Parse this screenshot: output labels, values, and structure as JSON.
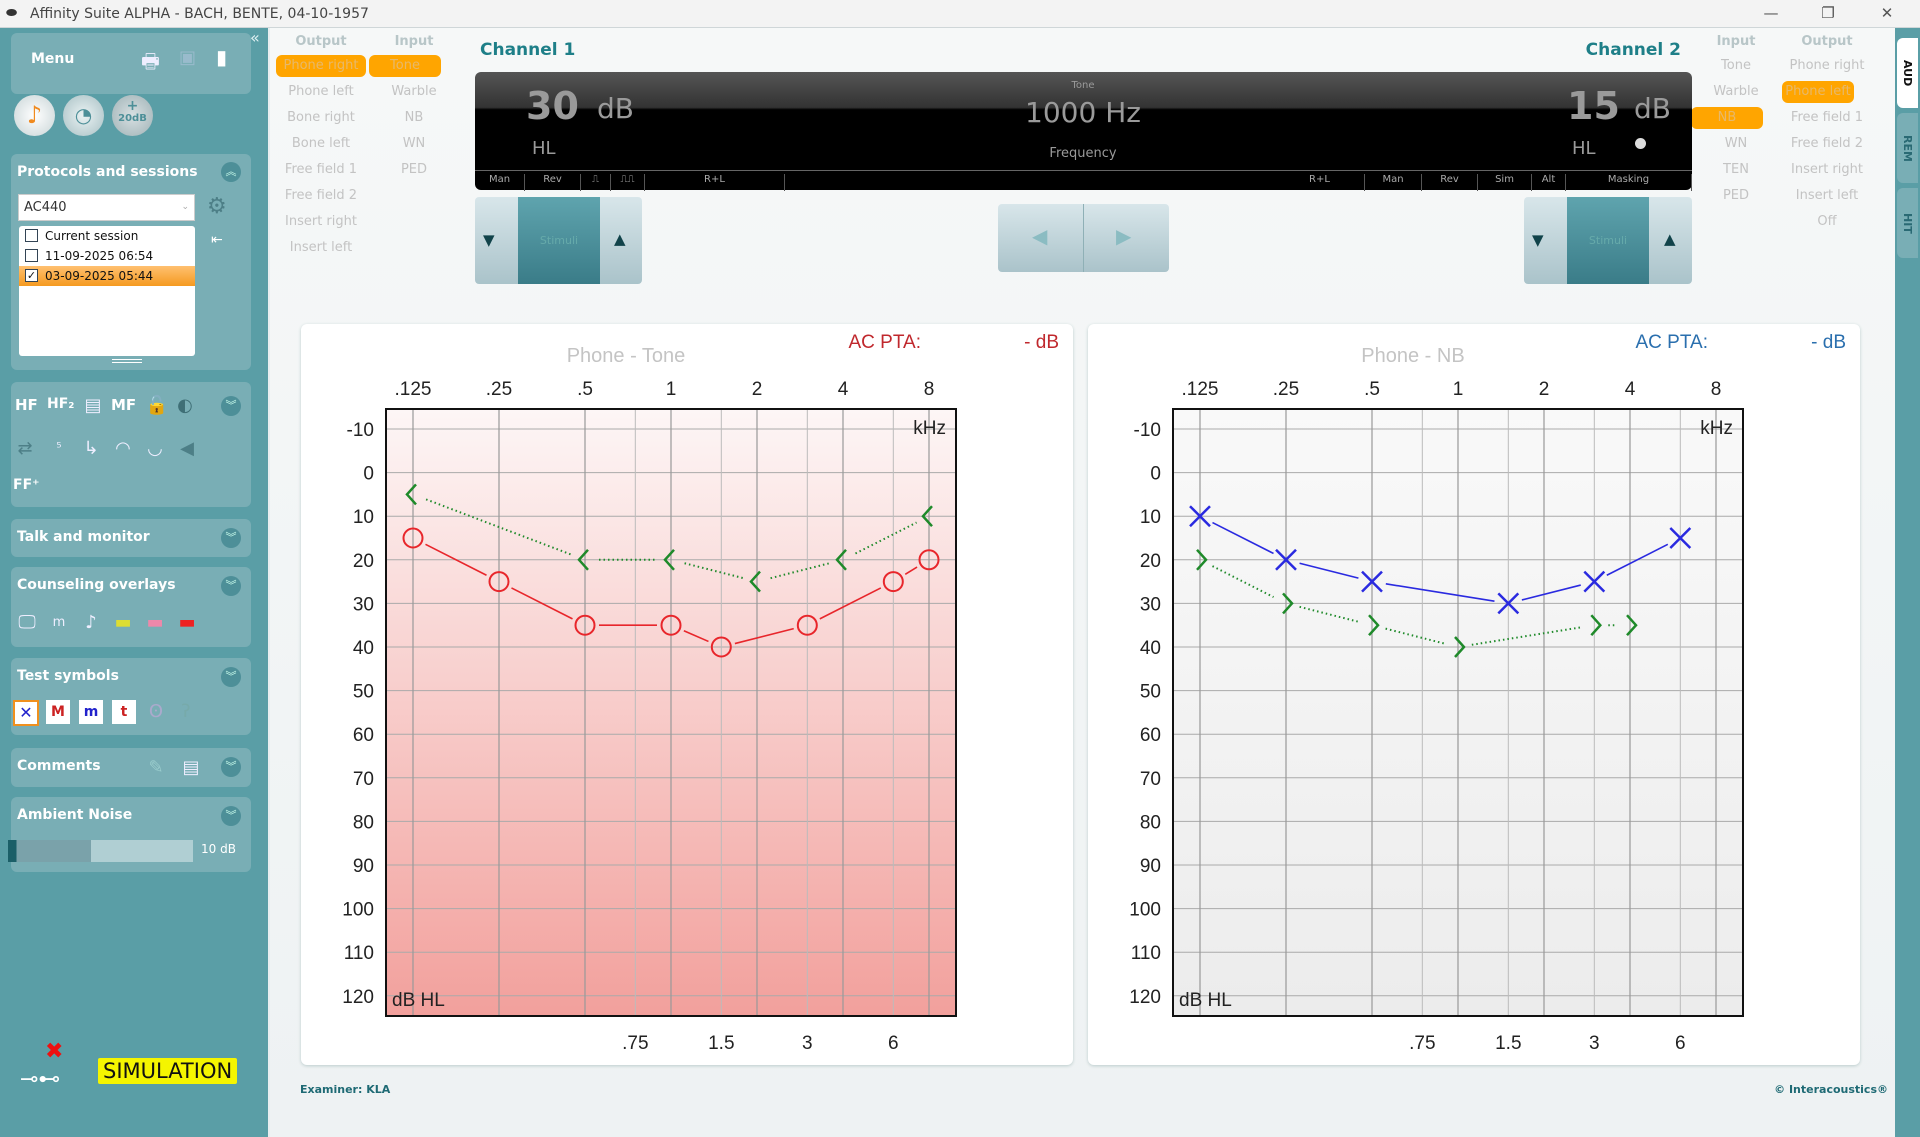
{
  "window": {
    "title": "Affinity Suite ALPHA - BACH, BENTE, 04-10-1957",
    "minimize": "—",
    "restore": "❐",
    "close": "✕"
  },
  "sidebar": {
    "menu_label": "Menu",
    "protocols": {
      "title": "Protocols and sessions",
      "protocol_value": "AC440",
      "sessions": [
        {
          "label": "Current session",
          "checked": false
        },
        {
          "label": "11-09-2025 06:54",
          "checked": false
        },
        {
          "label": "03-09-2025 05:44",
          "checked": true
        }
      ]
    },
    "tools": {
      "hf": "HF",
      "hf2": "HF₂",
      "mf": "MF",
      "ffplus": "FF⁺"
    },
    "talk_monitor": "Talk and monitor",
    "counseling": "Counseling overlays",
    "test_symbols": "Test symbols",
    "comments": "Comments",
    "ambient": {
      "title": "Ambient Noise",
      "value": "10 dB",
      "level_fraction": 0.45
    },
    "simulation": "SIMULATION",
    "boost_label": "20dB"
  },
  "channel1": {
    "title": "Channel 1",
    "output_header": "Output",
    "input_header": "Input",
    "outputs": [
      "Phone right",
      "Phone left",
      "Bone right",
      "Bone left",
      "Free field 1",
      "Free field 2",
      "Insert right",
      "Insert left"
    ],
    "inputs": [
      "Tone",
      "Warble",
      "NB",
      "WN",
      "PED"
    ],
    "selected_output": "Phone right",
    "selected_input": "Tone"
  },
  "channel2": {
    "title": "Channel 2",
    "output_header": "Output",
    "input_header": "Input",
    "inputs": [
      "Tone",
      "Warble",
      "NB",
      "WN",
      "TEN",
      "PED"
    ],
    "outputs": [
      "Phone right",
      "Phone left",
      "Free field 1",
      "Free field 2",
      "Insert right",
      "Insert left",
      "Off"
    ],
    "selected_output": "Phone left",
    "selected_input": "NB"
  },
  "display": {
    "ch1_level": "30",
    "ch1_unit": "dB",
    "ch1_scale": "HL",
    "stim_type": "Tone",
    "frequency": "1000 Hz",
    "frequency_label": "Frequency",
    "ch2_level": "15",
    "ch2_unit": "dB",
    "ch2_scale": "HL",
    "left_modes": [
      "Man",
      "Rev",
      "⎍",
      "⎍⎍",
      "R+L"
    ],
    "right_modes": [
      "R+L",
      "Man",
      "Rev",
      "Sim",
      "Alt",
      "Masking"
    ]
  },
  "stimuli_label": "Stimuli",
  "footer": {
    "examiner": "Examiner: KLA",
    "copyright": "© Interacoustics®"
  },
  "tabs": [
    "AUD",
    "REM",
    "HIT"
  ],
  "chart_data": [
    {
      "type": "line",
      "title": "Phone - Tone",
      "pta_label": "AC PTA:",
      "pta_value": "- dB",
      "pta_color": "#c0282d",
      "x_ticks_top": [
        ".125",
        ".25",
        ".5",
        "1",
        "2",
        "4",
        "8"
      ],
      "x_ticks_top_values": [
        0.125,
        0.25,
        0.5,
        1,
        2,
        4,
        8
      ],
      "x_ticks_bottom": [
        ".75",
        "1.5",
        "3",
        "6"
      ],
      "x_ticks_bottom_values": [
        0.75,
        1.5,
        3,
        6
      ],
      "x_unit": "kHz",
      "y_unit": "dB HL",
      "y_ticks": [
        -10,
        0,
        10,
        20,
        30,
        40,
        50,
        60,
        70,
        80,
        90,
        100,
        110,
        120
      ],
      "ylim": [
        -10,
        120
      ],
      "y_reversed": true,
      "x_scale": "log",
      "grid": true,
      "background": [
        "#fdf6f6",
        "#f2a09c"
      ],
      "series": [
        {
          "symbol": "circle",
          "color": "#e8262b",
          "line": "solid",
          "points": [
            [
              0.125,
              15
            ],
            [
              0.25,
              25
            ],
            [
              0.5,
              35
            ],
            [
              1,
              35
            ],
            [
              1.5,
              40
            ],
            [
              3,
              35
            ],
            [
              6,
              25
            ],
            [
              8,
              20
            ]
          ]
        },
        {
          "symbol": "bracket-left",
          "color": "#1f8a2a",
          "line": "dotted",
          "points": [
            [
              0.125,
              5
            ],
            [
              0.5,
              20
            ],
            [
              1,
              20
            ],
            [
              2,
              25
            ],
            [
              4,
              20
            ],
            [
              8,
              10
            ]
          ]
        }
      ]
    },
    {
      "type": "line",
      "title": "Phone - NB",
      "pta_label": "AC PTA:",
      "pta_value": "- dB",
      "pta_color": "#2a6fae",
      "x_ticks_top": [
        ".125",
        ".25",
        ".5",
        "1",
        "2",
        "4",
        "8"
      ],
      "x_ticks_top_values": [
        0.125,
        0.25,
        0.5,
        1,
        2,
        4,
        8
      ],
      "x_ticks_bottom": [
        ".75",
        "1.5",
        "3",
        "6"
      ],
      "x_ticks_bottom_values": [
        0.75,
        1.5,
        3,
        6
      ],
      "x_unit": "kHz",
      "y_unit": "dB HL",
      "y_ticks": [
        -10,
        0,
        10,
        20,
        30,
        40,
        50,
        60,
        70,
        80,
        90,
        100,
        110,
        120
      ],
      "ylim": [
        -10,
        120
      ],
      "y_reversed": true,
      "x_scale": "log",
      "grid": true,
      "background": [
        "#f9f9f9",
        "#ececec"
      ],
      "series": [
        {
          "symbol": "x",
          "color": "#2a2ae0",
          "line": "solid",
          "points": [
            [
              0.125,
              10
            ],
            [
              0.25,
              20
            ],
            [
              0.5,
              25
            ],
            [
              1.5,
              30
            ],
            [
              3,
              25
            ],
            [
              6,
              15
            ]
          ]
        },
        {
          "symbol": "bracket-right",
          "color": "#1f8a2a",
          "line": "dotted",
          "points": [
            [
              0.125,
              20
            ],
            [
              0.25,
              30
            ],
            [
              0.5,
              35
            ],
            [
              1,
              40
            ],
            [
              3,
              35
            ],
            [
              4,
              35
            ]
          ]
        }
      ]
    }
  ]
}
